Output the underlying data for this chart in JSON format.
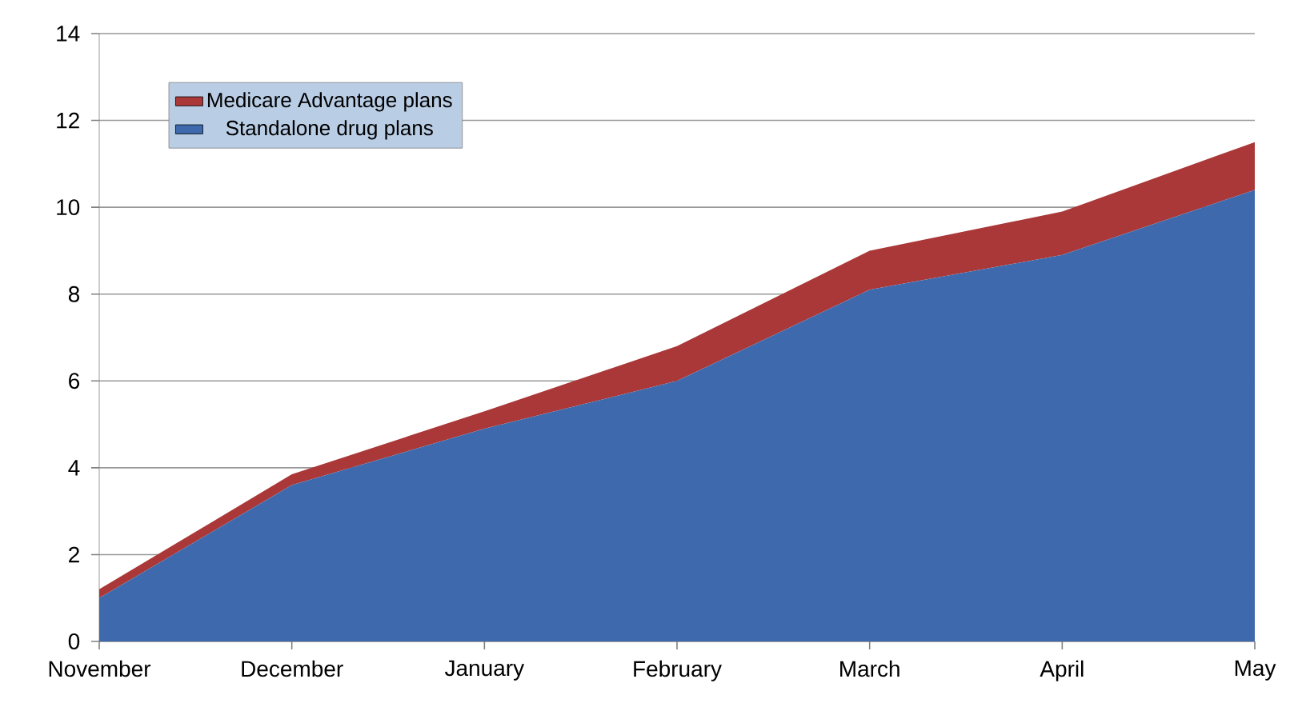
{
  "chart_data": {
    "type": "area",
    "stacked": true,
    "categories": [
      "November",
      "December",
      "January",
      "February",
      "March",
      "April",
      "May"
    ],
    "series": [
      {
        "name": "Standalone drug plans",
        "color": "#3e6aad",
        "values": [
          1.0,
          3.6,
          4.9,
          6.0,
          8.1,
          8.9,
          10.4
        ]
      },
      {
        "name": "Medicare Advantage plans",
        "color": "#ab3838",
        "values": [
          0.2,
          0.25,
          0.4,
          0.8,
          0.9,
          1.0,
          1.1
        ]
      }
    ],
    "ylim": [
      0,
      14
    ],
    "yticks": [
      0,
      2,
      4,
      6,
      8,
      10,
      12,
      14
    ],
    "grid": "y",
    "legend": "top left"
  }
}
